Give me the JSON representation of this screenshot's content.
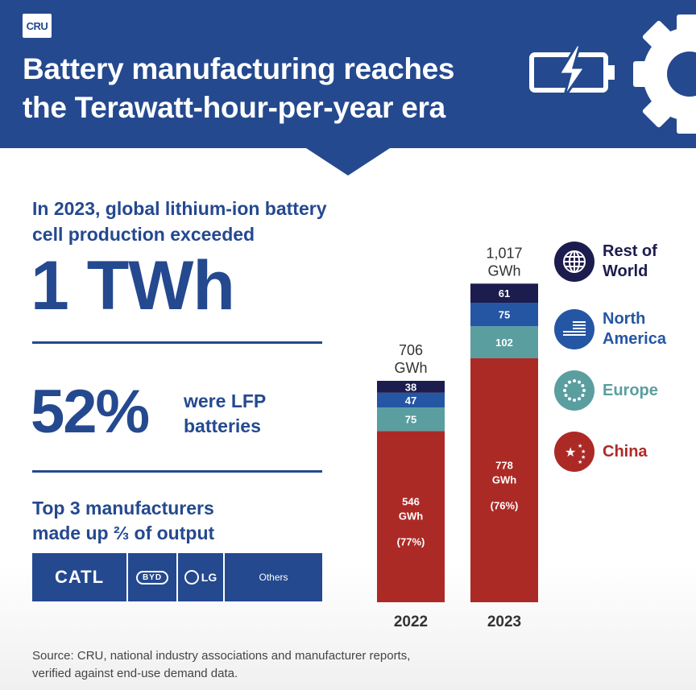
{
  "header": {
    "logo": "CRU",
    "title_line1": "Battery manufacturing reaches",
    "title_line2": "the Terawatt-hour-per-year era",
    "colors": {
      "header_bg": "#24498f"
    }
  },
  "stat1": {
    "text_line1": "In 2023, global lithium-ion battery",
    "text_line2": "cell production exceeded",
    "big": "1 TWh"
  },
  "stat2": {
    "big": "52%",
    "text_line1": "were LFP",
    "text_line2": "batteries"
  },
  "stat3": {
    "text_line1": "Top 3 manufacturers",
    "text_line2": "made up ⅔ of output"
  },
  "manufacturers": {
    "catl": "CATL",
    "byd": "BYD",
    "lg": "LG",
    "others": "Others"
  },
  "legend": [
    {
      "line1": "Rest of",
      "line2": "World",
      "color": "#1c1c4e",
      "icon": "globe-icon"
    },
    {
      "line1": "North",
      "line2": "America",
      "color": "#2456a4",
      "icon": "us-flag-icon"
    },
    {
      "line1": "Europe",
      "line2": "",
      "color": "#5a9ea0",
      "icon": "eu-stars-icon"
    },
    {
      "line1": "China",
      "line2": "",
      "color": "#ac2a26",
      "icon": "china-stars-icon"
    }
  ],
  "chart_data": {
    "type": "bar",
    "stacked": true,
    "categories": [
      "2022",
      "2023"
    ],
    "unit": "GWh",
    "totals": [
      "706",
      "1,017"
    ],
    "total_unit_label": "GWh",
    "series": [
      {
        "name": "China",
        "values": [
          546,
          778
        ],
        "color": "#ac2a26"
      },
      {
        "name": "Europe",
        "values": [
          75,
          102
        ],
        "color": "#5a9ea0"
      },
      {
        "name": "North America",
        "values": [
          47,
          75
        ],
        "color": "#2456a4"
      },
      {
        "name": "Rest of World",
        "values": [
          38,
          61
        ],
        "color": "#1c1c4e"
      }
    ],
    "china_labels": [
      {
        "value": "546",
        "unit": "GWh",
        "share": "(77%)"
      },
      {
        "value": "778",
        "unit": "GWh",
        "share": "(76%)"
      }
    ]
  },
  "source": {
    "line1": "Source: CRU, national industry associations and manufacturer reports,",
    "line2": "verified against end-use demand data."
  }
}
